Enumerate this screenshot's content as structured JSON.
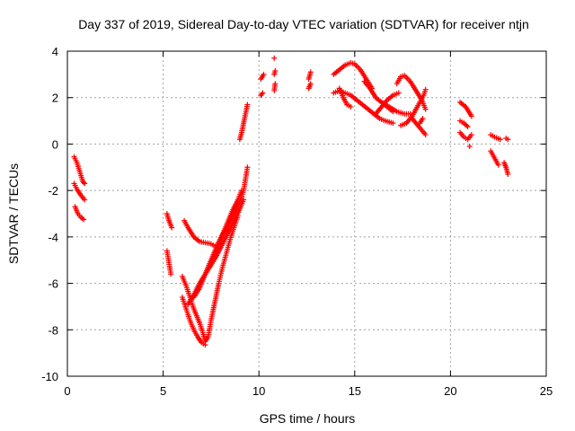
{
  "chart_data": {
    "type": "scatter",
    "title": "Day 337 of 2019, Sidereal Day-to-day VTEC variation (SDTVAR) for receiver ntjn",
    "xlabel": "GPS time / hours",
    "ylabel": "SDTVAR / TECUs",
    "xlim": [
      0,
      25
    ],
    "ylim": [
      -10,
      4
    ],
    "x_ticks": [
      0,
      5,
      10,
      15,
      20,
      25
    ],
    "x_tick_labels": [
      "0",
      "5",
      "10",
      "15",
      "20",
      "25"
    ],
    "y_ticks": [
      -10,
      -8,
      -6,
      -4,
      -2,
      0,
      2,
      4
    ],
    "y_tick_labels": [
      "-10",
      "-8",
      "-6",
      "-4",
      "-2",
      "0",
      "2",
      "4"
    ],
    "grid": true,
    "marker": "+",
    "series": [
      {
        "name": "SDTVAR",
        "color": "#ff0000",
        "segments": [
          {
            "x": [
              0.35,
              0.5,
              0.65,
              0.8,
              0.9
            ],
            "y": [
              -0.55,
              -0.8,
              -1.2,
              -1.6,
              -1.7
            ]
          },
          {
            "x": [
              0.35,
              0.5,
              0.7,
              0.9
            ],
            "y": [
              -1.7,
              -1.95,
              -2.2,
              -2.4
            ]
          },
          {
            "x": [
              0.4,
              0.55,
              0.7,
              0.85
            ],
            "y": [
              -2.7,
              -3.0,
              -3.15,
              -3.25
            ]
          },
          {
            "x": [
              5.2,
              5.3,
              5.45
            ],
            "y": [
              -3.0,
              -3.3,
              -3.6
            ]
          },
          {
            "x": [
              5.2,
              5.3,
              5.4
            ],
            "y": [
              -4.6,
              -5.1,
              -5.6
            ]
          },
          {
            "x": [
              6.1,
              6.3,
              6.6,
              6.9,
              7.2,
              7.5,
              7.7
            ],
            "y": [
              -3.3,
              -3.6,
              -4.0,
              -4.2,
              -4.25,
              -4.3,
              -4.4
            ]
          },
          {
            "x": [
              6.0,
              6.2,
              6.4,
              6.6,
              6.9,
              7.1,
              7.2,
              7.35,
              7.5,
              7.7,
              7.9,
              8.1,
              8.3,
              8.5,
              8.7,
              8.9
            ],
            "y": [
              -5.7,
              -6.1,
              -6.6,
              -7.1,
              -7.7,
              -8.2,
              -8.5,
              -8.3,
              -7.6,
              -6.8,
              -6.0,
              -5.3,
              -4.7,
              -4.1,
              -3.6,
              -3.1
            ]
          },
          {
            "x": [
              6.0,
              6.2,
              6.4,
              6.6,
              6.8,
              7.0,
              7.2
            ],
            "y": [
              -6.6,
              -7.1,
              -7.6,
              -8.0,
              -8.3,
              -8.55,
              -8.65
            ]
          },
          {
            "x": [
              6.3,
              6.6,
              6.9,
              7.2,
              7.5,
              7.8,
              8.1,
              8.4,
              8.7,
              9.0,
              9.2
            ],
            "y": [
              -6.9,
              -6.5,
              -6.0,
              -5.6,
              -5.2,
              -4.8,
              -4.3,
              -3.8,
              -3.3,
              -2.8,
              -2.4
            ]
          },
          {
            "x": [
              6.6,
              6.9,
              7.2,
              7.5,
              7.8,
              8.1,
              8.4,
              8.7,
              9.0,
              9.2,
              9.4
            ],
            "y": [
              -6.6,
              -6.2,
              -5.6,
              -5.0,
              -4.4,
              -3.9,
              -3.5,
              -3.0,
              -2.5,
              -2.0,
              -1.0
            ]
          },
          {
            "x": [
              7.4,
              7.7,
              8.0,
              8.3,
              8.6,
              8.9,
              9.1
            ],
            "y": [
              -5.3,
              -4.7,
              -4.1,
              -3.5,
              -2.9,
              -2.4,
              -2.0
            ]
          },
          {
            "x": [
              9.0,
              9.1,
              9.2,
              9.3,
              9.4
            ],
            "y": [
              0.2,
              0.5,
              0.9,
              1.3,
              1.7
            ]
          },
          {
            "x": [
              10.1,
              10.2
            ],
            "y": [
              2.1,
              2.2
            ]
          },
          {
            "x": [
              10.1,
              10.25
            ],
            "y": [
              2.8,
              3.0
            ]
          },
          {
            "x": [
              10.8,
              10.85
            ],
            "y": [
              2.3,
              2.6
            ]
          },
          {
            "x": [
              10.8,
              10.85
            ],
            "y": [
              3.0,
              3.15
            ]
          },
          {
            "x": [
              10.8
            ],
            "y": [
              3.7
            ]
          },
          {
            "x": [
              12.6,
              12.7
            ],
            "y": [
              2.4,
              2.6
            ]
          },
          {
            "x": [
              12.6,
              12.7
            ],
            "y": [
              2.8,
              3.1
            ]
          },
          {
            "x": [
              13.9,
              14.2,
              14.5,
              14.8,
              15.0,
              15.3,
              15.6,
              15.9
            ],
            "y": [
              3.0,
              3.2,
              3.4,
              3.5,
              3.45,
              3.2,
              2.8,
              2.4
            ]
          },
          {
            "x": [
              13.9,
              14.2,
              14.5,
              14.8,
              15.1,
              15.4,
              15.7,
              16.0,
              16.3,
              16.6,
              17.0
            ],
            "y": [
              2.2,
              2.3,
              2.2,
              2.1,
              1.9,
              1.7,
              1.5,
              1.3,
              1.1,
              1.0,
              0.9
            ]
          },
          {
            "x": [
              14.2,
              14.4,
              14.6,
              14.8
            ],
            "y": [
              2.4,
              2.0,
              1.7,
              1.6
            ]
          },
          {
            "x": [
              15.5,
              15.8,
              16.1,
              16.4,
              16.8,
              17.2,
              17.6,
              17.9
            ],
            "y": [
              2.7,
              2.4,
              2.0,
              1.8,
              1.6,
              1.4,
              1.3,
              1.3
            ]
          },
          {
            "x": [
              16.1,
              16.4,
              16.7,
              17.0,
              17.3
            ],
            "y": [
              1.3,
              1.6,
              1.9,
              2.1,
              2.2
            ]
          },
          {
            "x": [
              16.4,
              16.7,
              17.0
            ],
            "y": [
              1.8,
              1.6,
              1.4
            ]
          },
          {
            "x": [
              17.2,
              17.4,
              17.6,
              17.9,
              18.2,
              18.5,
              18.7
            ],
            "y": [
              2.6,
              2.9,
              2.95,
              2.7,
              2.3,
              1.9,
              1.5
            ]
          },
          {
            "x": [
              17.4,
              17.7,
              18.0,
              18.2,
              18.4,
              18.6,
              18.7
            ],
            "y": [
              0.8,
              0.9,
              1.2,
              1.5,
              1.8,
              2.1,
              2.35
            ]
          },
          {
            "x": [
              18.0,
              18.3,
              18.5,
              18.7
            ],
            "y": [
              1.1,
              0.8,
              0.6,
              0.4
            ]
          },
          {
            "x": [
              18.4,
              18.55
            ],
            "y": [
              0.9,
              1.1
            ]
          },
          {
            "x": [
              20.5,
              20.8,
              21.1
            ],
            "y": [
              1.8,
              1.6,
              1.2
            ]
          },
          {
            "x": [
              20.5,
              20.7,
              20.9
            ],
            "y": [
              1.0,
              0.9,
              0.75
            ]
          },
          {
            "x": [
              20.5,
              20.7,
              20.9,
              21.1
            ],
            "y": [
              0.5,
              0.3,
              0.2,
              0.4
            ]
          },
          {
            "x": [
              21.0
            ],
            "y": [
              -0.1
            ]
          },
          {
            "x": [
              22.1,
              22.3,
              22.6
            ],
            "y": [
              0.4,
              0.3,
              0.2
            ]
          },
          {
            "x": [
              22.1,
              22.3,
              22.5
            ],
            "y": [
              -0.3,
              -0.6,
              -0.9
            ]
          },
          {
            "x": [
              22.9,
              23.0
            ],
            "y": [
              0.25,
              0.2
            ]
          },
          {
            "x": [
              22.8,
              22.9,
              23.0
            ],
            "y": [
              -0.8,
              -1.0,
              -1.3
            ]
          }
        ]
      }
    ]
  }
}
